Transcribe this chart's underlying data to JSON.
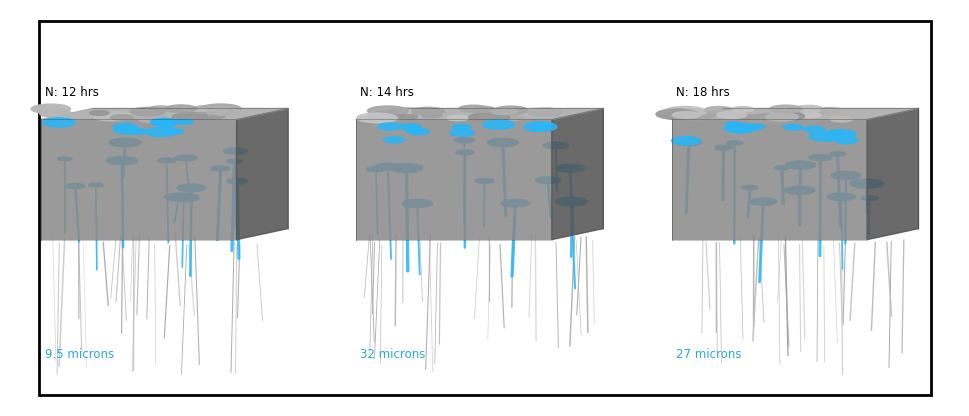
{
  "background_color": "#ffffff",
  "border_color": "#000000",
  "border_linewidth": 2.0,
  "panels": [
    {
      "label_top": "N: 12 hrs",
      "label_bottom": "9.5 microns",
      "label_color": "#29a8e0",
      "label_top_color": "#000000",
      "seed": 42
    },
    {
      "label_top": "N: 14 hrs",
      "label_bottom": "32 microns",
      "label_color": "#29a8e0",
      "label_top_color": "#000000",
      "seed": 77
    },
    {
      "label_top": "N: 18 hrs",
      "label_bottom": "27 microns",
      "label_color": "#29a8e0",
      "label_top_color": "#000000",
      "seed": 123
    }
  ],
  "figure_width": 9.7,
  "figure_height": 4.16,
  "dpi": 100
}
